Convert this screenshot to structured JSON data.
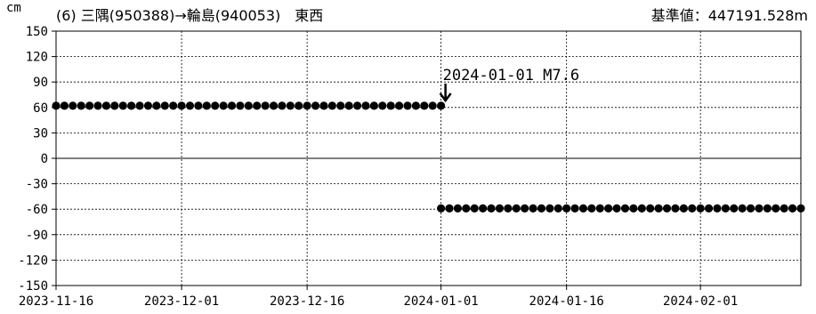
{
  "header": {
    "unit": "cm",
    "station_title": "(6) 三隅(950388)→輪島(940053)　東西",
    "reference_value": "基準値：447191.528m"
  },
  "chart_data": {
    "type": "scatter",
    "xlabel": "",
    "ylabel": "cm",
    "ylim": [
      -150,
      150
    ],
    "yticks": [
      150,
      120,
      90,
      60,
      30,
      0,
      -30,
      -60,
      -90,
      -120,
      -150
    ],
    "xlim": [
      "2023-11-16",
      "2024-02-13"
    ],
    "xticks": [
      "2023-11-16",
      "2023-12-01",
      "2023-12-16",
      "2024-01-01",
      "2024-01-16",
      "2024-02-01"
    ],
    "grid": true,
    "annotation": {
      "label": "2024-01-01 M7.6",
      "date": "2024-01-01"
    },
    "series": [
      {
        "color": "#000000",
        "segments": [
          {
            "start": "2023-11-16",
            "end": "2024-01-01",
            "value": 62
          },
          {
            "start": "2024-01-01",
            "end": "2024-02-13",
            "value": -59
          }
        ]
      }
    ]
  }
}
